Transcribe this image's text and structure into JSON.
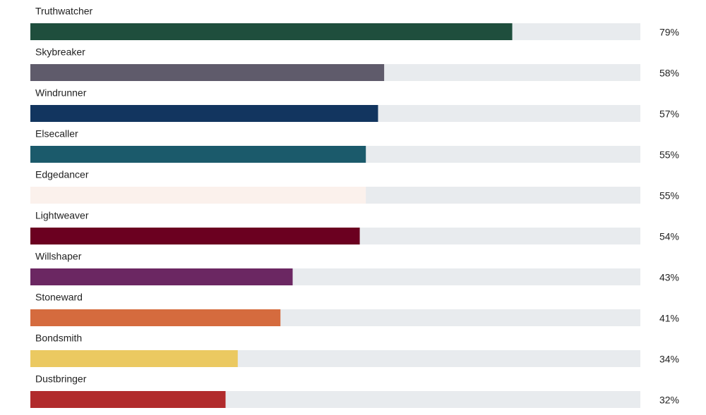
{
  "chart_data": {
    "type": "bar",
    "categories": [
      "Truthwatcher",
      "Skybreaker",
      "Windrunner",
      "Elsecaller",
      "Edgedancer",
      "Lightweaver",
      "Willshaper",
      "Stoneward",
      "Bondsmith",
      "Dustbringer"
    ],
    "values": [
      79,
      58,
      57,
      55,
      55,
      54,
      43,
      41,
      34,
      32
    ],
    "value_labels": [
      "79%",
      "58%",
      "57%",
      "55%",
      "55%",
      "54%",
      "43%",
      "41%",
      "34%",
      "32%"
    ],
    "colors": [
      "#1f4e3d",
      "#5f5b6b",
      "#12355f",
      "#1b5a6b",
      "#fbf1ec",
      "#6b0020",
      "#6b2762",
      "#d56b3e",
      "#ebc961",
      "#b12b2c"
    ],
    "xlim": [
      0,
      100
    ]
  }
}
